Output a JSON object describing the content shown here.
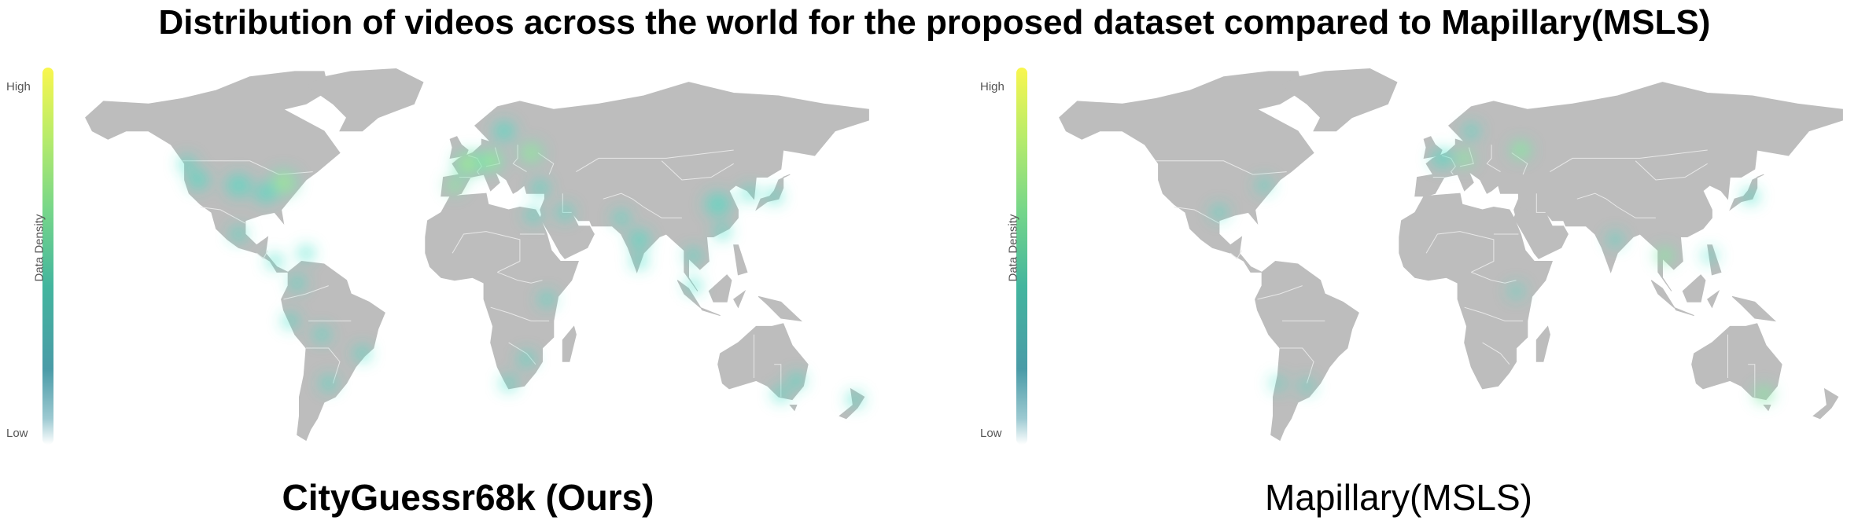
{
  "title": "Distribution of videos across the world for the proposed dataset compared to Mapillary(MSLS)",
  "colors": {
    "land": "#bdbdbd",
    "border": "#e8e8e8",
    "heat_low": "#38e0c4",
    "heat_mid": "#9ef07a",
    "heat_high": "#fbf84f"
  },
  "legend": {
    "high": "High",
    "low": "Low",
    "axis_label": "Data Density"
  },
  "maps": [
    {
      "subtitle": "CityGuessr68k (Ours)",
      "subtitle_weight": "bold",
      "hotspots": [
        {
          "region": "Western North America",
          "lon": -118,
          "lat": 42,
          "intensity": 0.55,
          "spread": 5
        },
        {
          "region": "Pacific Northwest",
          "lon": -123,
          "lat": 48,
          "intensity": 0.5,
          "spread": 4
        },
        {
          "region": "Great Plains",
          "lon": -100,
          "lat": 40,
          "intensity": 0.5,
          "spread": 6
        },
        {
          "region": "Eastern North America",
          "lon": -80,
          "lat": 41,
          "intensity": 0.6,
          "spread": 6
        },
        {
          "region": "Midwest",
          "lon": -88,
          "lat": 37,
          "intensity": 0.55,
          "spread": 5
        },
        {
          "region": "Mexico",
          "lon": -100,
          "lat": 22,
          "intensity": 0.5,
          "spread": 4
        },
        {
          "region": "Central America",
          "lon": -84,
          "lat": 12,
          "intensity": 0.45,
          "spread": 3
        },
        {
          "region": "Caribbean",
          "lon": -70,
          "lat": 15,
          "intensity": 0.45,
          "spread": 3
        },
        {
          "region": "Colombia",
          "lon": -74,
          "lat": 4,
          "intensity": 0.45,
          "spread": 3
        },
        {
          "region": "Peru",
          "lon": -77,
          "lat": -10,
          "intensity": 0.45,
          "spread": 3
        },
        {
          "region": "Bolivia",
          "lon": -63,
          "lat": -15,
          "intensity": 0.45,
          "spread": 3
        },
        {
          "region": "Southeast Brazil",
          "lon": -45,
          "lat": -22,
          "intensity": 0.5,
          "spread": 3
        },
        {
          "region": "Argentina",
          "lon": -60,
          "lat": -33,
          "intensity": 0.5,
          "spread": 3
        },
        {
          "region": "Western Europe",
          "lon": 2,
          "lat": 48,
          "intensity": 0.7,
          "spread": 6
        },
        {
          "region": "Iberia",
          "lon": -4,
          "lat": 40,
          "intensity": 0.6,
          "spread": 4
        },
        {
          "region": "Central Europe",
          "lon": 12,
          "lat": 49,
          "intensity": 1.0,
          "spread": 5
        },
        {
          "region": "Scandinavia",
          "lon": 18,
          "lat": 60,
          "intensity": 0.55,
          "spread": 5
        },
        {
          "region": "Eastern Europe",
          "lon": 30,
          "lat": 52,
          "intensity": 0.6,
          "spread": 5
        },
        {
          "region": "Turkey",
          "lon": 34,
          "lat": 39,
          "intensity": 0.55,
          "spread": 4
        },
        {
          "region": "Middle East",
          "lon": 45,
          "lat": 30,
          "intensity": 0.5,
          "spread": 4
        },
        {
          "region": "Egypt",
          "lon": 31,
          "lat": 29,
          "intensity": 0.45,
          "spread": 3
        },
        {
          "region": "East Africa",
          "lon": 37,
          "lat": -2,
          "intensity": 0.45,
          "spread": 3
        },
        {
          "region": "Southern Africa",
          "lon": 28,
          "lat": -24,
          "intensity": 0.5,
          "spread": 4
        },
        {
          "region": "South Africa",
          "lon": 20,
          "lat": -33,
          "intensity": 0.45,
          "spread": 3
        },
        {
          "region": "Pakistan",
          "lon": 70,
          "lat": 28,
          "intensity": 0.45,
          "spread": 3
        },
        {
          "region": "India",
          "lon": 78,
          "lat": 20,
          "intensity": 0.55,
          "spread": 5
        },
        {
          "region": "South India",
          "lon": 78,
          "lat": 12,
          "intensity": 0.5,
          "spread": 3
        },
        {
          "region": "Southeast Asia",
          "lon": 102,
          "lat": 14,
          "intensity": 0.5,
          "spread": 4
        },
        {
          "region": "Malaysia",
          "lon": 102,
          "lat": 3,
          "intensity": 0.45,
          "spread": 3
        },
        {
          "region": "China",
          "lon": 113,
          "lat": 33,
          "intensity": 0.55,
          "spread": 6
        },
        {
          "region": "South China",
          "lon": 115,
          "lat": 23,
          "intensity": 0.5,
          "spread": 4
        },
        {
          "region": "Korea",
          "lon": 127,
          "lat": 37,
          "intensity": 0.5,
          "spread": 3
        },
        {
          "region": "Japan",
          "lon": 138,
          "lat": 36,
          "intensity": 0.5,
          "spread": 4
        },
        {
          "region": "Eastern Australia",
          "lon": 148,
          "lat": -32,
          "intensity": 0.55,
          "spread": 4
        },
        {
          "region": "Southeastern Australia",
          "lon": 141,
          "lat": -37,
          "intensity": 0.5,
          "spread": 4
        },
        {
          "region": "New Zealand",
          "lon": 174,
          "lat": -39,
          "intensity": 0.5,
          "spread": 3
        }
      ]
    },
    {
      "subtitle": "Mapillary(MSLS)",
      "subtitle_weight": "normal",
      "hotspots": [
        {
          "region": "Texas",
          "lon": -97,
          "lat": 30,
          "intensity": 0.4,
          "spread": 3
        },
        {
          "region": "US Northeast",
          "lon": -77,
          "lat": 40,
          "intensity": 0.35,
          "spread": 3
        },
        {
          "region": "Western Europe",
          "lon": 2,
          "lat": 50,
          "intensity": 0.55,
          "spread": 5
        },
        {
          "region": "Central Europe",
          "lon": 12,
          "lat": 50,
          "intensity": 0.65,
          "spread": 4
        },
        {
          "region": "Scandinavia",
          "lon": 15,
          "lat": 60,
          "intensity": 0.45,
          "spread": 4
        },
        {
          "region": "Russia",
          "lon": 37,
          "lat": 53,
          "intensity": 1.0,
          "spread": 4
        },
        {
          "region": "Japan",
          "lon": 139,
          "lat": 36,
          "intensity": 0.5,
          "spread": 3
        },
        {
          "region": "India",
          "lon": 79,
          "lat": 20,
          "intensity": 0.35,
          "spread": 3
        },
        {
          "region": "Southeast Asia",
          "lon": 101,
          "lat": 14,
          "intensity": 0.6,
          "spread": 3
        },
        {
          "region": "Philippines",
          "lon": 121,
          "lat": 14,
          "intensity": 0.3,
          "spread": 2
        },
        {
          "region": "East Africa",
          "lon": 35,
          "lat": 1,
          "intensity": 0.25,
          "spread": 2
        },
        {
          "region": "Argentina",
          "lon": -58,
          "lat": -34,
          "intensity": 0.3,
          "spread": 2
        },
        {
          "region": "Chile",
          "lon": -71,
          "lat": -33,
          "intensity": 0.25,
          "spread": 2
        },
        {
          "region": "Southeastern Australia",
          "lon": 145,
          "lat": -37,
          "intensity": 0.65,
          "spread": 3
        }
      ]
    }
  ]
}
